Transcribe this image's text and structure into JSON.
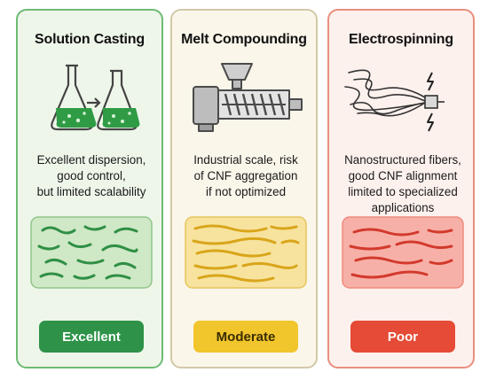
{
  "panels": [
    {
      "title": "Solution Casting",
      "description": [
        "Excellent dispersion,",
        "good control,",
        "but limited scalability"
      ],
      "rating": "Excellent",
      "colors": {
        "accent": "#2e9348",
        "swatch_fill": "#cfe8c6",
        "fiber": "#2f8f45"
      },
      "illustration": "flask-to-flask-icon"
    },
    {
      "title": "Melt Compounding",
      "description": [
        "Industrial scale, risk",
        "of CNF aggregation",
        "if not optimized"
      ],
      "rating": "Moderate",
      "colors": {
        "accent": "#f1c52c",
        "swatch_fill": "#f7e39e",
        "fiber": "#d9a51a"
      },
      "illustration": "screw-extruder-icon"
    },
    {
      "title": "Electrospinning",
      "description": [
        "Nanostructured fibers,",
        "good CNF alignment",
        "limited to specialized",
        "applications"
      ],
      "rating": "Poor",
      "colors": {
        "accent": "#e54b36",
        "swatch_fill": "#f7b0a8",
        "fiber": "#d23a2c"
      },
      "illustration": "electrospinning-nozzle-icon"
    }
  ]
}
